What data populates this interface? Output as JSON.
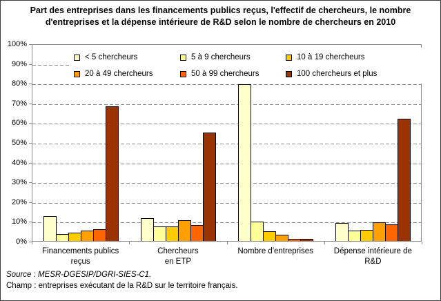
{
  "title": "Part des entreprises dans les financements publics reçus, l'effectif de chercheurs, le nombre d'entreprises et la dépense intérieure de R&D selon le nombre de chercheurs en 2010",
  "footer": {
    "source": "Source : MESR-DGESIP/DGRI-SIES-C1.",
    "champ": "Champ : entreprises exécutant de la R&D sur le territoire français."
  },
  "chart_data": {
    "type": "bar",
    "title": "Part des entreprises dans les financements publics reçus, l'effectif de chercheurs, le nombre d'entreprises et la dépense intérieure de R&D selon le nombre de chercheurs en 2010",
    "categories": [
      "Financements publics reçus",
      "Chercheurs en ETP",
      "Nombre d'entreprises",
      "Dépense intérieure de R&D"
    ],
    "categories_lines": [
      [
        "Financements publics",
        "reçus"
      ],
      [
        "Chercheurs",
        "en ETP"
      ],
      [
        "Nombre d'entreprises"
      ],
      [
        "Dépense intérieure de",
        "R&D"
      ]
    ],
    "series": [
      {
        "name": "< 5 chercheurs",
        "color": "#FFFFCC",
        "values": [
          12.8,
          11.8,
          79.8,
          9.3
        ]
      },
      {
        "name": "5 à 9 chercheurs",
        "color": "#FFFF99",
        "values": [
          3.7,
          7.3,
          10.0,
          5.3
        ]
      },
      {
        "name": "10 à 19 chercheurs",
        "color": "#FFCC00",
        "values": [
          4.1,
          7.3,
          4.8,
          5.7
        ]
      },
      {
        "name": "20 à 49 chercheurs",
        "color": "#FFA000",
        "values": [
          5.2,
          10.4,
          3.1,
          9.4
        ]
      },
      {
        "name": "50 à 99 chercheurs",
        "color": "#FF6600",
        "values": [
          6.0,
          8.0,
          1.1,
          8.4
        ]
      },
      {
        "name": "100 chercheurs et plus",
        "color": "#993300",
        "values": [
          68.5,
          55.4,
          1.1,
          62.5
        ]
      }
    ],
    "xlabel": "",
    "ylabel": "",
    "ylim": [
      0,
      100
    ],
    "yticks": [
      "0%",
      "10%",
      "20%",
      "30%",
      "40%",
      "50%",
      "60%",
      "70%",
      "80%",
      "90%",
      "100%"
    ],
    "grid": "horizontal-dashed",
    "grid_color": "#8c8c8c",
    "bar_border_color": "#000000",
    "legend_position": "top-inside",
    "legend_rows": 2,
    "legend_columns": 3
  }
}
